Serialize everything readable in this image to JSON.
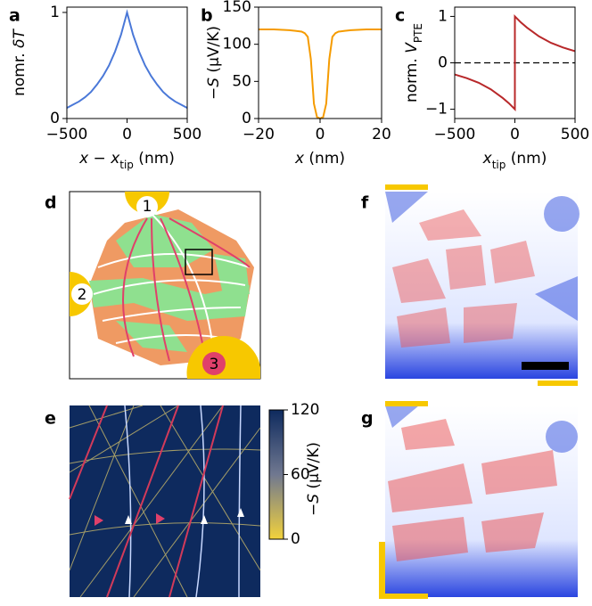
{
  "chart_data": [
    {
      "type": "line",
      "letter": "a",
      "color": "#4a78d8",
      "ylabel": [
        {
          "text": "nomr. "
        },
        {
          "italic": "δT"
        }
      ],
      "xlabel": [
        {
          "italic": "x"
        },
        {
          "text": " − "
        },
        {
          "italic": "x"
        },
        {
          "sub": "tip"
        },
        {
          "text": " (nm)"
        }
      ],
      "x": [
        -500,
        -450,
        -400,
        -350,
        -300,
        -250,
        -200,
        -150,
        -100,
        -50,
        0,
        50,
        100,
        150,
        200,
        250,
        300,
        350,
        400,
        450,
        500
      ],
      "values": [
        0.1,
        0.13,
        0.16,
        0.2,
        0.25,
        0.32,
        0.4,
        0.5,
        0.63,
        0.79,
        1,
        0.79,
        0.63,
        0.5,
        0.4,
        0.32,
        0.25,
        0.2,
        0.16,
        0.13,
        0.1
      ],
      "xlim": [
        -500,
        500
      ],
      "xticks": [
        {
          "value": -500,
          "label": "−500"
        },
        0,
        500
      ],
      "ylim": [
        0,
        1.05
      ],
      "yticks": [
        0,
        1
      ]
    },
    {
      "type": "line",
      "letter": "b",
      "color": "#f59b00",
      "ylabel": [
        {
          "text": "−"
        },
        {
          "italic": "S"
        },
        {
          "text": " (μV/K)"
        }
      ],
      "xlabel": [
        {
          "italic": "x"
        },
        {
          "text": " (nm)"
        }
      ],
      "x": [
        -20,
        -15,
        -10,
        -8,
        -6,
        -5,
        -4,
        -3,
        -2,
        -1,
        0,
        1,
        2,
        3,
        4,
        5,
        6,
        8,
        10,
        15,
        20
      ],
      "values": [
        120,
        120,
        119,
        118,
        117,
        115,
        110,
        80,
        20,
        2,
        0,
        2,
        20,
        80,
        110,
        115,
        117,
        118,
        119,
        120,
        120
      ],
      "xlim": [
        -20,
        20
      ],
      "xticks": [
        {
          "value": -20,
          "label": "−20"
        },
        0,
        20
      ],
      "ylim": [
        0,
        150
      ],
      "yticks": [
        0,
        50,
        100,
        150
      ]
    },
    {
      "type": "line",
      "letter": "c",
      "color": "#b8282a",
      "ylabel": [
        {
          "text": "norm. "
        },
        {
          "italic": "V"
        },
        {
          "sub": "PTE"
        }
      ],
      "xlabel": [
        {
          "italic": "x"
        },
        {
          "sub": "tip"
        },
        {
          "text": " (nm)"
        }
      ],
      "x": [
        -500,
        -400,
        -300,
        -200,
        -100,
        -50,
        0,
        0,
        50,
        100,
        200,
        300,
        400,
        500
      ],
      "values": [
        -0.25,
        -0.33,
        -0.43,
        -0.57,
        -0.76,
        -0.87,
        -1,
        1,
        0.87,
        0.76,
        0.57,
        0.43,
        0.33,
        0.25
      ],
      "hline": 0,
      "xlim": [
        -500,
        500
      ],
      "xticks": [
        {
          "value": -500,
          "label": "−500"
        },
        0,
        500
      ],
      "ylim": [
        -1.2,
        1.2
      ],
      "yticks": [
        {
          "value": -1,
          "label": "−1"
        },
        0,
        1
      ]
    },
    {
      "type": "colorbar",
      "ylabel": [
        {
          "text": "−"
        },
        {
          "italic": "S"
        },
        {
          "text": " (μV/K)"
        }
      ],
      "colors": [
        "#f2d23c",
        "#707890",
        "#0e2a5e"
      ],
      "ylim": [
        0,
        120
      ],
      "yticks": [
        0,
        60,
        120
      ]
    }
  ],
  "panels": [
    {
      "letter": "d",
      "labels": [
        "1",
        "2",
        "3"
      ]
    },
    {
      "letter": "e"
    },
    {
      "letter": "f"
    },
    {
      "letter": "g"
    }
  ]
}
